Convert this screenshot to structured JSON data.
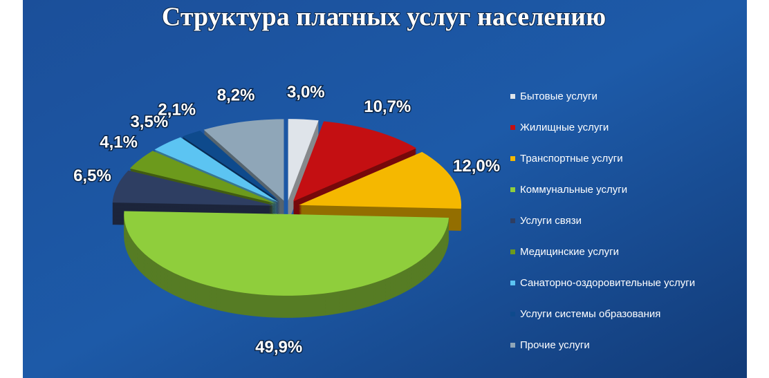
{
  "chart_data": {
    "type": "pie",
    "title": "Структура платных услуг населению",
    "categories": [
      "Бытовые услуги",
      "Жилищные услуги",
      "Транспортные услуги",
      "Коммунальные услуги",
      "Услуги связи",
      "Медицинские услуги",
      "Санаторно-оздоровительные услуги",
      "Услуги системы образования",
      "Прочие услуги"
    ],
    "values": [
      3.0,
      10.7,
      12.0,
      49.9,
      6.5,
      4.1,
      3.5,
      2.1,
      8.2
    ],
    "value_labels": [
      "3,0%",
      "10,7%",
      "12,0%",
      "49,9%",
      "6,5%",
      "4,1%",
      "3,5%",
      "2,1%",
      "8,2%"
    ],
    "colors": [
      "#dfe4ea",
      "#c40f12",
      "#f5b800",
      "#8fce3c",
      "#2e3e62",
      "#6c9a1c",
      "#5cc4f2",
      "#0e4a8c",
      "#8fa6b8"
    ],
    "legend": "right"
  }
}
